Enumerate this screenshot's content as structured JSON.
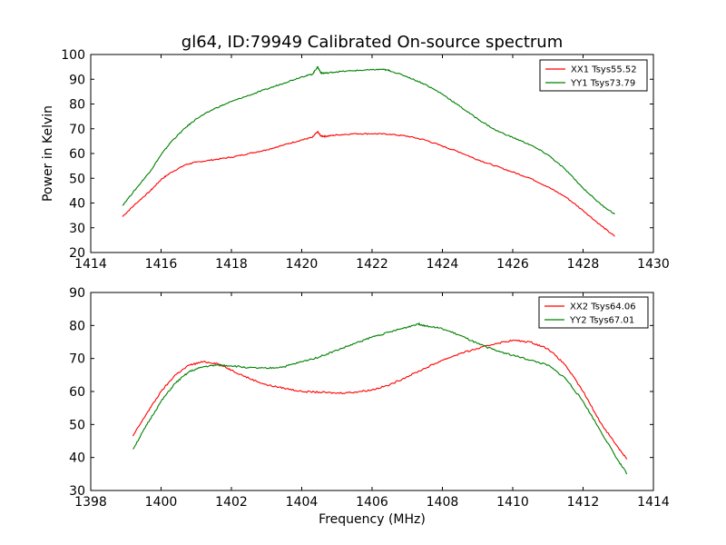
{
  "page_title": "gl64, ID:79949 Calibrated On-source spectrum",
  "colors": {
    "xx": "#ff0000",
    "yy": "#008000",
    "axes": "#000000"
  },
  "chart_data": [
    {
      "type": "line",
      "title": "gl64, ID:79949 Calibrated On-source spectrum",
      "xlabel": "",
      "ylabel": "Power in Kelvin",
      "xlim": [
        1414,
        1430
      ],
      "ylim": [
        20,
        100
      ],
      "xticks": [
        1414,
        1416,
        1418,
        1420,
        1422,
        1424,
        1426,
        1428,
        1430
      ],
      "yticks": [
        20,
        30,
        40,
        50,
        60,
        70,
        80,
        90,
        100
      ],
      "grid": false,
      "legend_position": "top-right",
      "series": [
        {
          "name": "XX1 Tsys55.52",
          "color": "#ff0000",
          "x": [
            1414.9,
            1415.3,
            1415.7,
            1416.0,
            1416.3,
            1416.7,
            1417.0,
            1417.5,
            1418.0,
            1418.5,
            1419.0,
            1419.5,
            1420.0,
            1420.3,
            1420.45,
            1420.55,
            1420.7,
            1421.0,
            1421.5,
            1422.0,
            1422.5,
            1423.0,
            1423.5,
            1424.0,
            1424.5,
            1425.0,
            1425.5,
            1426.0,
            1426.5,
            1427.0,
            1427.5,
            1428.0,
            1428.5,
            1428.9
          ],
          "y": [
            34.5,
            40.0,
            45.0,
            49.5,
            52.5,
            55.5,
            56.5,
            57.5,
            58.5,
            60.0,
            61.5,
            63.5,
            65.5,
            66.5,
            68.8,
            67.0,
            67.0,
            67.5,
            68.0,
            68.0,
            67.8,
            67.0,
            65.5,
            63.0,
            60.5,
            57.5,
            55.0,
            52.5,
            50.0,
            46.5,
            42.5,
            37.0,
            31.0,
            26.5
          ]
        },
        {
          "name": "YY1 Tsys73.79",
          "color": "#008000",
          "x": [
            1414.9,
            1415.3,
            1415.7,
            1416.0,
            1416.3,
            1416.7,
            1417.0,
            1417.5,
            1418.0,
            1418.5,
            1419.0,
            1419.5,
            1420.0,
            1420.3,
            1420.45,
            1420.55,
            1420.7,
            1421.0,
            1421.5,
            1422.0,
            1422.3,
            1422.5,
            1423.0,
            1423.5,
            1424.0,
            1424.5,
            1425.0,
            1425.5,
            1426.0,
            1426.5,
            1427.0,
            1427.5,
            1428.0,
            1428.5,
            1428.9
          ],
          "y": [
            39.0,
            46.0,
            53.0,
            59.5,
            65.0,
            70.5,
            74.0,
            78.0,
            81.0,
            83.5,
            86.0,
            88.5,
            91.0,
            92.0,
            95.0,
            92.5,
            92.5,
            93.0,
            93.5,
            93.8,
            94.0,
            93.5,
            91.0,
            88.0,
            84.0,
            79.0,
            74.0,
            69.5,
            66.5,
            63.5,
            59.5,
            53.5,
            46.0,
            39.5,
            35.5
          ]
        }
      ]
    },
    {
      "type": "line",
      "title": "",
      "xlabel": "Frequency (MHz)",
      "ylabel": "",
      "xlim": [
        1398,
        1414
      ],
      "ylim": [
        30,
        90
      ],
      "xticks": [
        1398,
        1400,
        1402,
        1404,
        1406,
        1408,
        1410,
        1412,
        1414
      ],
      "yticks": [
        30,
        40,
        50,
        60,
        70,
        80,
        90
      ],
      "grid": false,
      "legend_position": "top-right",
      "series": [
        {
          "name": "XX2 Tsys64.06",
          "color": "#ff0000",
          "x": [
            1399.2,
            1399.6,
            1400.0,
            1400.4,
            1400.8,
            1401.2,
            1401.6,
            1402.0,
            1402.5,
            1403.0,
            1403.5,
            1404.0,
            1404.5,
            1405.0,
            1405.5,
            1406.0,
            1406.5,
            1407.0,
            1407.5,
            1408.0,
            1408.5,
            1409.0,
            1409.5,
            1410.0,
            1410.5,
            1411.0,
            1411.5,
            1412.0,
            1412.5,
            1413.0,
            1413.25
          ],
          "y": [
            46.5,
            53.5,
            60.0,
            65.0,
            68.0,
            69.0,
            68.5,
            66.5,
            64.0,
            62.0,
            61.0,
            60.0,
            59.8,
            59.5,
            59.8,
            60.5,
            62.0,
            64.5,
            67.0,
            69.5,
            71.5,
            73.0,
            74.5,
            75.5,
            75.0,
            73.0,
            68.0,
            60.0,
            50.5,
            43.0,
            39.5
          ]
        },
        {
          "name": "YY2 Tsys67.01",
          "color": "#008000",
          "x": [
            1399.2,
            1399.6,
            1400.0,
            1400.4,
            1400.8,
            1401.2,
            1401.6,
            1402.0,
            1402.5,
            1403.0,
            1403.5,
            1404.0,
            1404.5,
            1405.0,
            1405.5,
            1406.0,
            1406.5,
            1407.0,
            1407.3,
            1407.5,
            1408.0,
            1408.5,
            1409.0,
            1409.5,
            1410.0,
            1410.5,
            1411.0,
            1411.5,
            1412.0,
            1412.5,
            1413.0,
            1413.25
          ],
          "y": [
            42.5,
            50.0,
            57.0,
            62.5,
            66.0,
            67.5,
            68.0,
            67.8,
            67.2,
            67.0,
            67.5,
            69.0,
            70.5,
            72.5,
            74.5,
            76.5,
            78.0,
            79.5,
            80.5,
            80.0,
            79.0,
            77.0,
            74.5,
            72.5,
            71.0,
            69.5,
            68.0,
            64.0,
            57.0,
            48.0,
            39.0,
            35.0
          ]
        }
      ]
    }
  ]
}
